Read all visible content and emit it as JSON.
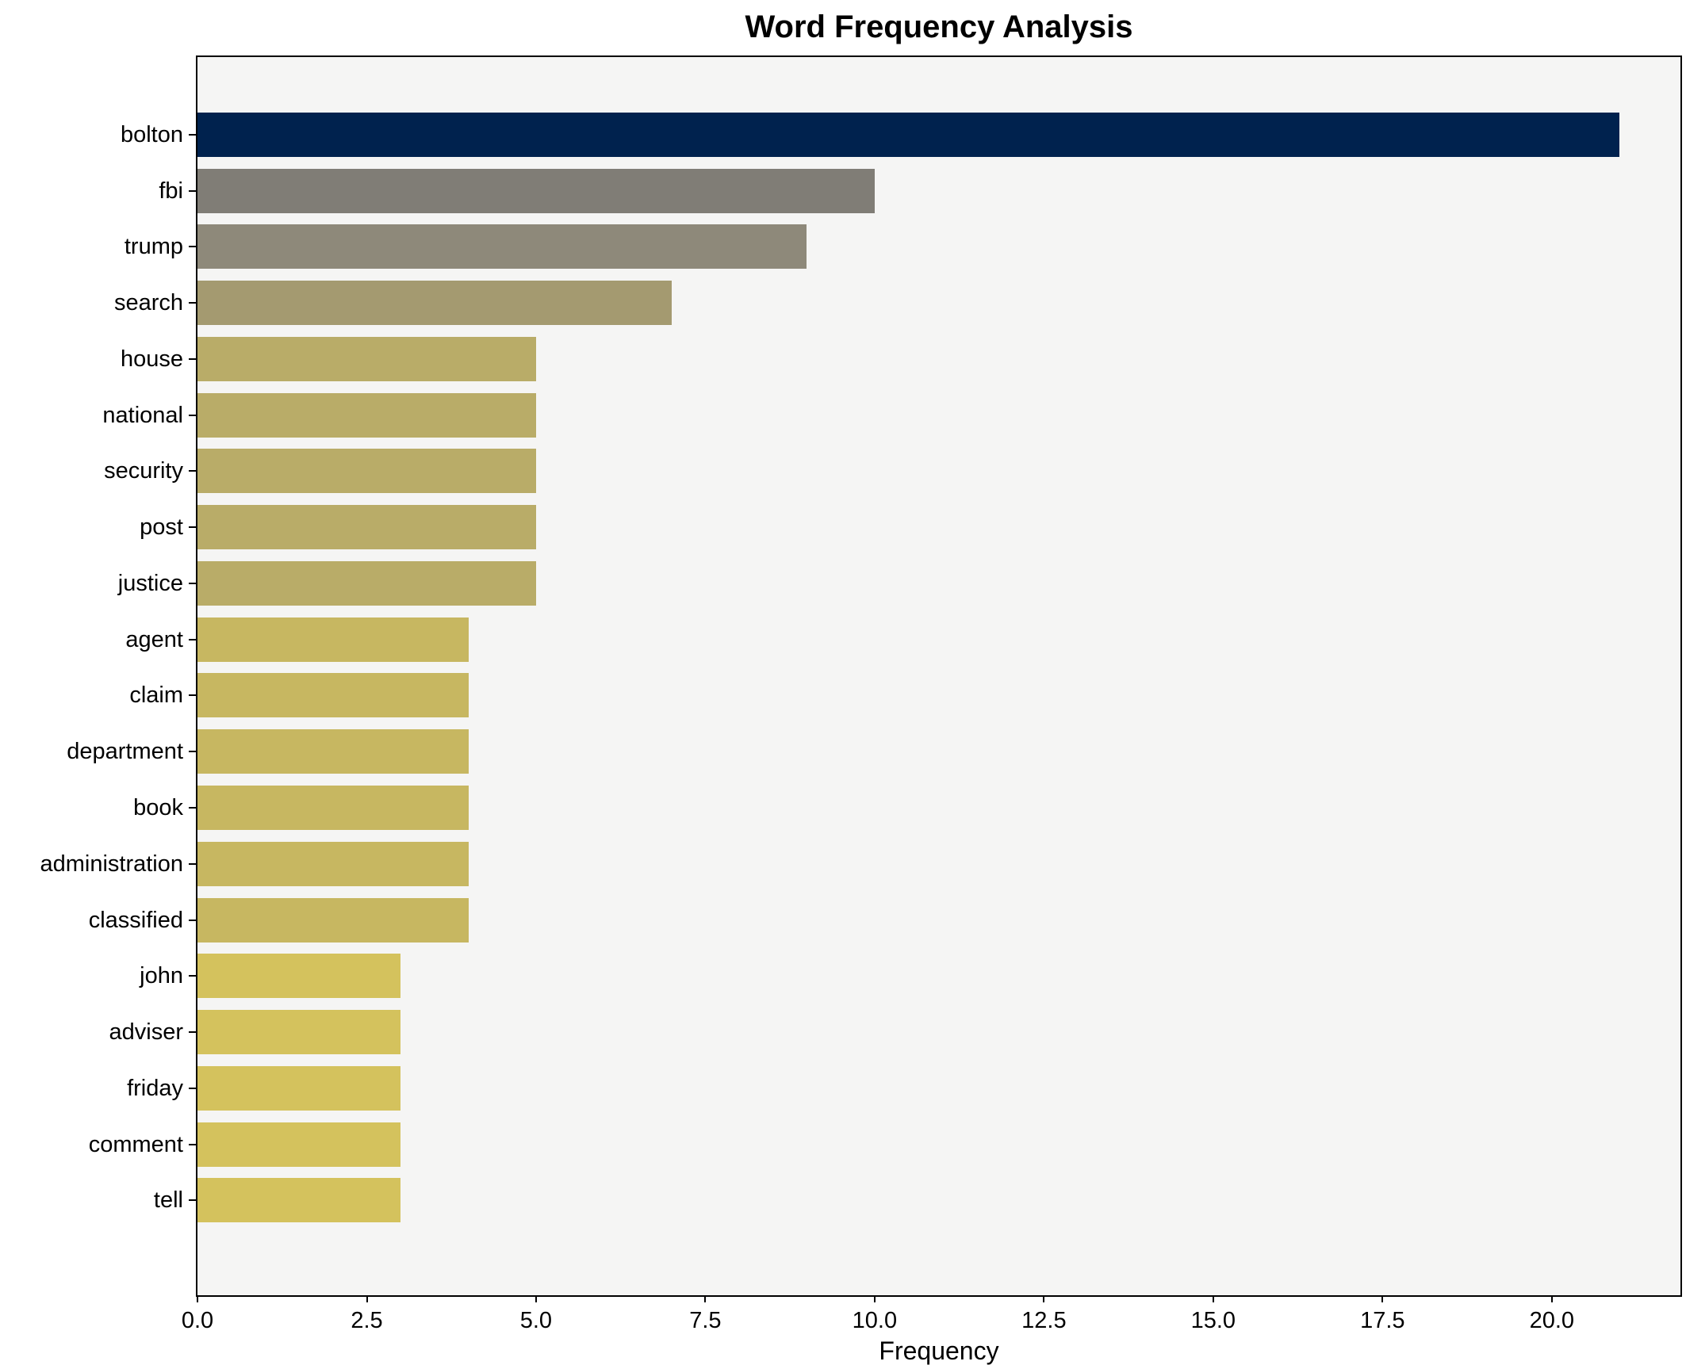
{
  "chart_data": {
    "type": "bar",
    "orientation": "horizontal",
    "title": "Word Frequency Analysis",
    "xlabel": "Frequency",
    "ylabel": "",
    "xlim": [
      0,
      21.9
    ],
    "x_ticks": [
      0.0,
      2.5,
      5.0,
      7.5,
      10.0,
      12.5,
      15.0,
      17.5,
      20.0
    ],
    "x_tick_decimals": 1,
    "grid": false,
    "legend_position": "none",
    "categories": [
      "bolton",
      "fbi",
      "trump",
      "search",
      "house",
      "national",
      "security",
      "post",
      "justice",
      "agent",
      "claim",
      "department",
      "book",
      "administration",
      "classified",
      "john",
      "adviser",
      "friday",
      "comment",
      "tell"
    ],
    "values": [
      21,
      10,
      9,
      7,
      5,
      5,
      5,
      5,
      5,
      4,
      4,
      4,
      4,
      4,
      4,
      3,
      3,
      3,
      3,
      3
    ],
    "bar_colors": [
      "#00224e",
      "#807d76",
      "#8e897a",
      "#a49a70",
      "#b9ac68",
      "#b9ac68",
      "#b9ac68",
      "#b9ac68",
      "#b9ac68",
      "#c7b761",
      "#c7b761",
      "#c7b761",
      "#c7b761",
      "#c7b761",
      "#c7b761",
      "#d4c25d",
      "#d4c25d",
      "#d4c25d",
      "#d4c25d",
      "#d4c25d"
    ],
    "colors": {
      "plot_background": "#f5f5f4",
      "figure_background": "#ffffff",
      "spine": "#000000",
      "text": "#000000"
    }
  }
}
